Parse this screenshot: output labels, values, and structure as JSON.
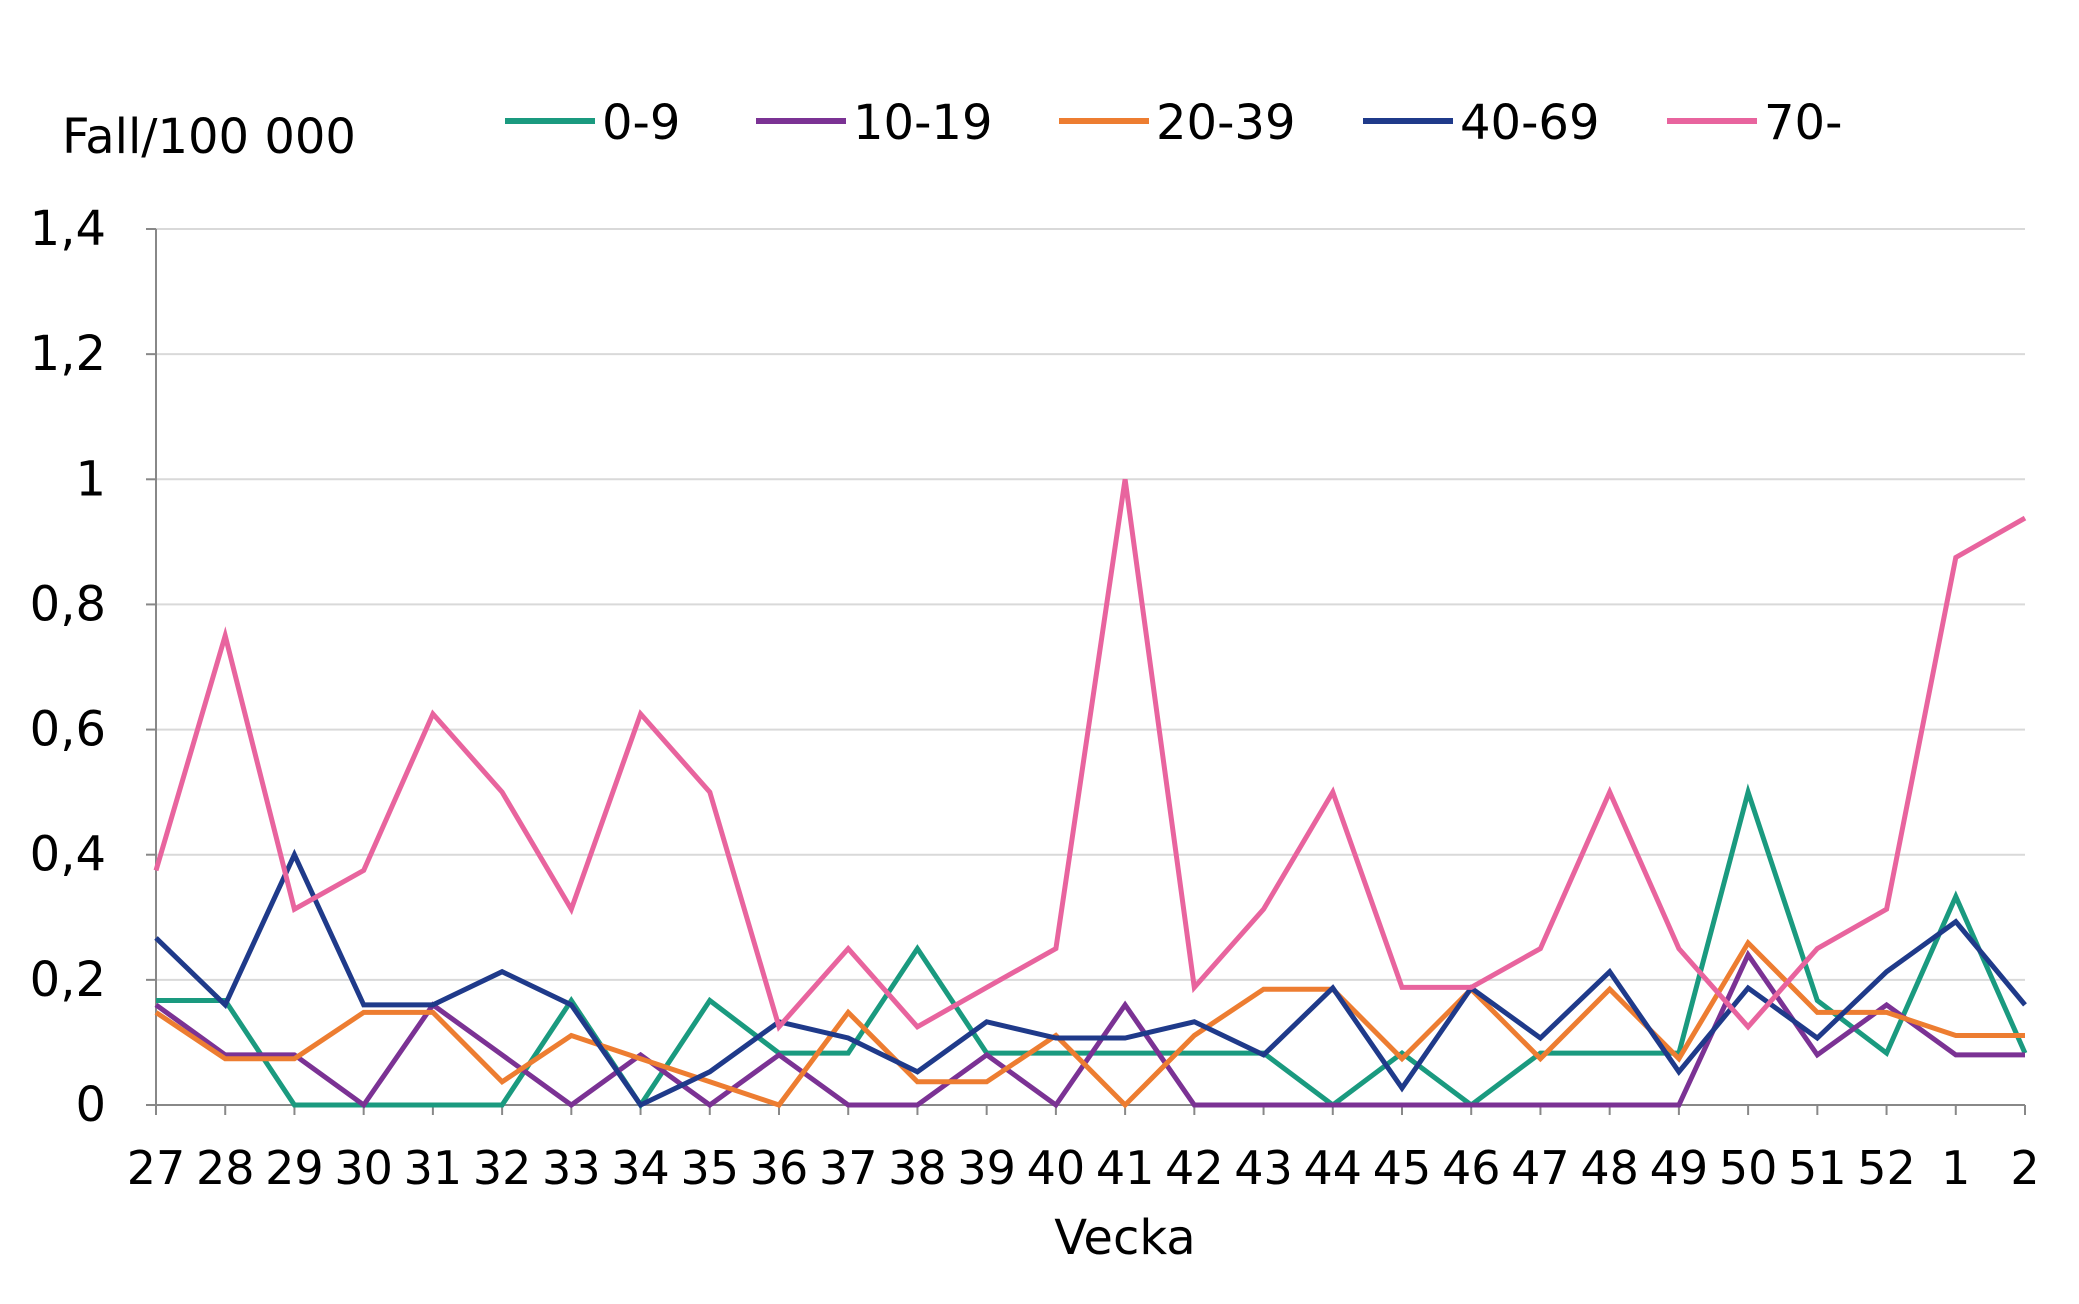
{
  "chart_data": {
    "type": "line",
    "ylabel": "Fall/100 000",
    "xlabel": "Vecka",
    "categories": [
      "27",
      "28",
      "29",
      "30",
      "31",
      "32",
      "33",
      "34",
      "35",
      "36",
      "37",
      "38",
      "39",
      "40",
      "41",
      "42",
      "43",
      "44",
      "45",
      "46",
      "47",
      "48",
      "49",
      "50",
      "51",
      "52",
      "1",
      "2"
    ],
    "ylim": [
      0,
      1.4
    ],
    "yticks": [
      "0",
      "0,2",
      "0,4",
      "0,6",
      "0,8",
      "1",
      "1,2",
      "1,4"
    ],
    "ytick_values": [
      0,
      0.2,
      0.4,
      0.6,
      0.8,
      1.0,
      1.2,
      1.4
    ],
    "grid": "horizontal",
    "legend": "top",
    "series": [
      {
        "name": "0-9",
        "color": "#1a9a7f",
        "values": [
          0.167,
          0.167,
          0,
          0,
          0,
          0,
          0.167,
          0,
          0.167,
          0.083,
          0.083,
          0.25,
          0.083,
          0.083,
          0.083,
          0.083,
          0.083,
          0,
          0.083,
          0,
          0.083,
          0.083,
          0.083,
          0.5,
          0.167,
          0.083,
          0.333,
          0.083
        ]
      },
      {
        "name": "10-19",
        "color": "#7b3294",
        "values": [
          0.16,
          0.08,
          0.08,
          0,
          0.16,
          0.08,
          0,
          0.08,
          0,
          0.08,
          0,
          0,
          0.08,
          0,
          0.16,
          0,
          0,
          0,
          0,
          0,
          0,
          0,
          0,
          0.24,
          0.08,
          0.16,
          0.08,
          0.08
        ]
      },
      {
        "name": "20-39",
        "color": "#ed7d31",
        "values": [
          0.148,
          0.074,
          0.074,
          0.148,
          0.148,
          0.037,
          0.111,
          0.074,
          0.037,
          0,
          0.148,
          0.037,
          0.037,
          0.111,
          0,
          0.111,
          0.185,
          0.185,
          0.074,
          0.185,
          0.074,
          0.185,
          0.074,
          0.259,
          0.148,
          0.148,
          0.111,
          0.111
        ]
      },
      {
        "name": "40-69",
        "color": "#1f3a8a",
        "values": [
          0.267,
          0.16,
          0.4,
          0.16,
          0.16,
          0.213,
          0.16,
          0,
          0.053,
          0.133,
          0.107,
          0.053,
          0.133,
          0.107,
          0.107,
          0.133,
          0.08,
          0.187,
          0.027,
          0.187,
          0.107,
          0.213,
          0.053,
          0.187,
          0.107,
          0.213,
          0.293,
          0.16
        ]
      },
      {
        "name": "70-",
        "color": "#e8649e",
        "values": [
          0.375,
          0.75,
          0.313,
          0.375,
          0.625,
          0.5,
          0.313,
          0.625,
          0.5,
          0.125,
          0.25,
          0.125,
          0.188,
          0.25,
          1.0,
          0.188,
          0.313,
          0.5,
          0.188,
          0.188,
          0.25,
          0.5,
          0.25,
          0.125,
          0.25,
          0.313,
          0.875,
          0.938
        ]
      }
    ]
  }
}
